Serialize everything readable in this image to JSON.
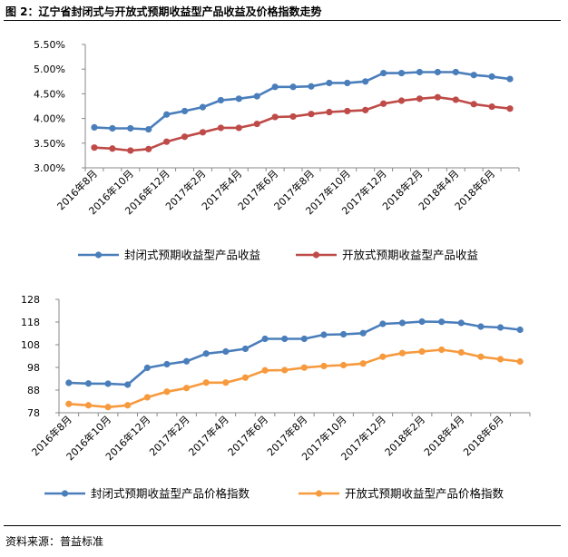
{
  "header": {
    "title": "图 2：辽宁省封闭式与开放式预期收益型产品收益及价格指数走势"
  },
  "footer": {
    "source": "资料来源：普益标准"
  },
  "chart_data": [
    {
      "type": "line",
      "title": "",
      "categories": [
        "2016年8月",
        "2016年9月",
        "2016年10月",
        "2016年11月",
        "2016年12月",
        "2017年1月",
        "2017年2月",
        "2017年3月",
        "2017年4月",
        "2017年5月",
        "2017年6月",
        "2017年7月",
        "2017年8月",
        "2017年9月",
        "2017年10月",
        "2017年11月",
        "2017年12月",
        "2018年1月",
        "2018年2月",
        "2018年3月",
        "2018年4月",
        "2018年5月",
        "2018年6月",
        "2018年7月"
      ],
      "tick_labels": [
        "2016年8月",
        "2016年10月",
        "2016年12月",
        "2017年2月",
        "2017年4月",
        "2017年6月",
        "2017年8月",
        "2017年10月",
        "2017年12月",
        "2018年2月",
        "2018年4月",
        "2018年6月"
      ],
      "y_ticks": [
        "5.50%",
        "5.00%",
        "4.50%",
        "4.00%",
        "3.50%",
        "3.00%"
      ],
      "ylim": [
        3.0,
        5.5
      ],
      "grid": false,
      "legend_position": "bottom",
      "series": [
        {
          "name": "封闭式预期收益型产品收益",
          "color": "#4a7ebb",
          "values": [
            3.82,
            3.8,
            3.8,
            3.78,
            4.08,
            4.15,
            4.23,
            4.37,
            4.4,
            4.45,
            4.64,
            4.64,
            4.65,
            4.72,
            4.72,
            4.75,
            4.92,
            4.92,
            4.94,
            4.94,
            4.94,
            4.88,
            4.85,
            4.8
          ]
        },
        {
          "name": "开放式预期收益型产品收益",
          "color": "#be4b48",
          "values": [
            3.41,
            3.39,
            3.35,
            3.38,
            3.53,
            3.63,
            3.72,
            3.81,
            3.81,
            3.89,
            4.03,
            4.04,
            4.09,
            4.13,
            4.15,
            4.17,
            4.3,
            4.36,
            4.4,
            4.43,
            4.38,
            4.29,
            4.24,
            4.2
          ]
        }
      ]
    },
    {
      "type": "line",
      "title": "",
      "categories": [
        "2016年8月",
        "2016年9月",
        "2016年10月",
        "2016年11月",
        "2016年12月",
        "2017年1月",
        "2017年2月",
        "2017年3月",
        "2017年4月",
        "2017年5月",
        "2017年6月",
        "2017年7月",
        "2017年8月",
        "2017年9月",
        "2017年10月",
        "2017年11月",
        "2017年12月",
        "2018年1月",
        "2018年2月",
        "2018年3月",
        "2018年4月",
        "2018年5月",
        "2018年6月",
        "2018年7月"
      ],
      "tick_labels": [
        "2016年8月",
        "2016年10月",
        "2016年12月",
        "2017年2月",
        "2017年4月",
        "2017年6月",
        "2017年8月",
        "2017年10月",
        "2017年12月",
        "2018年2月",
        "2018年4月",
        "2018年6月"
      ],
      "y_ticks": [
        "128",
        "118",
        "108",
        "98",
        "88",
        "78"
      ],
      "ylim": [
        78,
        128
      ],
      "grid": false,
      "legend_position": "bottom",
      "series": [
        {
          "name": "封闭式预期收益型产品价格指数",
          "color": "#4a7ebb",
          "values": [
            91.2,
            90.9,
            90.8,
            90.4,
            97.8,
            99.4,
            100.7,
            104.1,
            105.0,
            106.2,
            110.6,
            110.6,
            110.6,
            112.4,
            112.6,
            113.1,
            117.2,
            117.6,
            118.2,
            118.1,
            117.6,
            116.0,
            115.6,
            114.6
          ]
        },
        {
          "name": "开放式预期收益型产品价格指数",
          "color": "#f79a3e",
          "values": [
            81.9,
            81.3,
            80.5,
            81.3,
            84.8,
            87.3,
            88.9,
            91.3,
            91.3,
            93.5,
            96.7,
            96.8,
            97.9,
            98.6,
            99.0,
            99.7,
            102.7,
            104.3,
            105.0,
            105.8,
            104.6,
            102.7,
            101.6,
            100.6
          ]
        }
      ]
    }
  ]
}
